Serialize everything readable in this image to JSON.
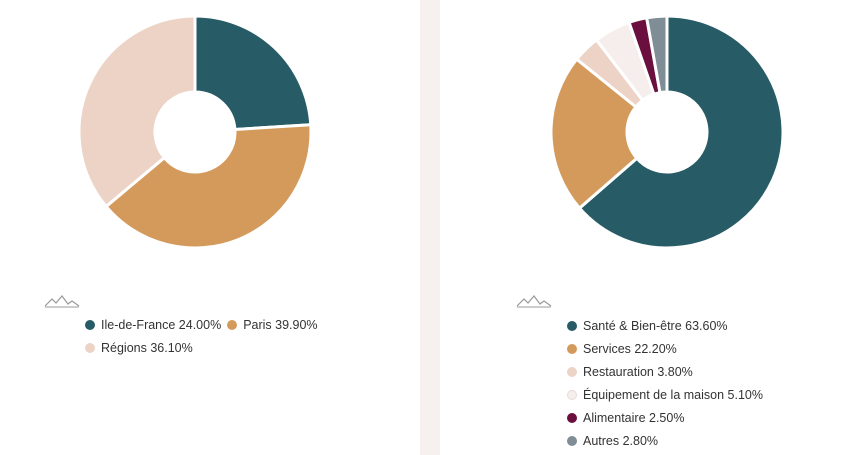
{
  "chart_data": [
    {
      "type": "pie",
      "categories": [
        "Ile-de-France",
        "Paris",
        "Régions"
      ],
      "values": [
        24.0,
        39.9,
        36.1
      ],
      "value_labels": [
        "24.00%",
        "39.90%",
        "36.10%"
      ],
      "legend_labels": [
        "Ile-de-France 24.00%",
        "Paris 39.90%",
        "Régions 36.10%"
      ],
      "colors": [
        "#275b66",
        "#d49a5b",
        "#ecd3c6"
      ],
      "legend_position": "bottom"
    },
    {
      "type": "pie",
      "categories": [
        "Santé & Bien-être",
        "Services",
        "Restauration",
        "Équipement de la maison",
        "Alimentaire",
        "Autres"
      ],
      "values": [
        63.6,
        22.2,
        3.8,
        5.1,
        2.5,
        2.8
      ],
      "value_labels": [
        "63.60%",
        "22.20%",
        "3.80%",
        "5.10%",
        "2.50%",
        "2.80%"
      ],
      "legend_labels": [
        "Santé & Bien-être 63.60%",
        "Services 22.20%",
        "Restauration 3.80%",
        "Équipement de la maison 5.10%",
        "Alimentaire 2.50%",
        "Autres 2.80%"
      ],
      "colors": [
        "#275b66",
        "#d49a5b",
        "#ecd3c6",
        "#f6eeec",
        "#6b0f3e",
        "#7f8d96"
      ],
      "legend_position": "bottom"
    }
  ],
  "icons": {
    "legend_icon": "mountain-sparkline-icon"
  }
}
